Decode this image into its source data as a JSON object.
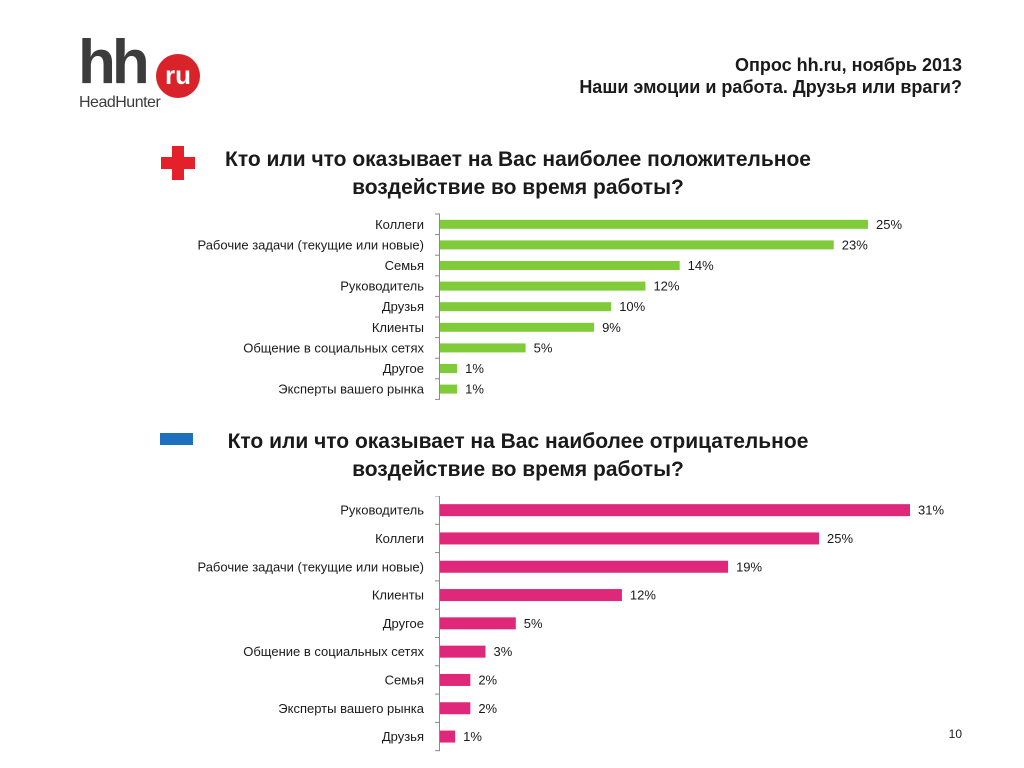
{
  "header": {
    "line1": "Опрос hh.ru, ноябрь 2013",
    "line2": "Наши эмоции и работа. Друзья или враги?"
  },
  "logo": {
    "main": "hh",
    "badge": "ru",
    "subtitle": "HeadHunter"
  },
  "colors": {
    "positive": "#7fcb3a",
    "negative": "#e0287a",
    "plus_icon": "#e4202a",
    "minus_icon": "#1f6fbf"
  },
  "questions": {
    "positive_title": "Кто или что оказывает на Вас наиболее положительное воздействие во время работы?",
    "negative_title": "Кто или что оказывает на Вас наиболее отрицательное воздействие во время работы?"
  },
  "chart_data": [
    {
      "type": "bar",
      "orientation": "horizontal",
      "title": "Кто или что оказывает на Вас наиболее положительное воздействие во время работы?",
      "categories": [
        "Коллеги",
        "Рабочие задачи (текущие или новые)",
        "Семья",
        "Руководитель",
        "Друзья",
        "Клиенты",
        "Общение в социальных сетях",
        "Другое",
        "Эксперты вашего рынка"
      ],
      "values": [
        25,
        23,
        14,
        12,
        10,
        9,
        5,
        1,
        1
      ],
      "value_suffix": "%",
      "color": "#7fcb3a",
      "xlim": [
        0,
        25
      ]
    },
    {
      "type": "bar",
      "orientation": "horizontal",
      "title": "Кто или что оказывает на Вас наиболее отрицательное воздействие во время работы?",
      "categories": [
        "Руководитель",
        "Коллеги",
        "Рабочие задачи (текущие или новые)",
        "Клиенты",
        "Другое",
        "Общение в социальных сетях",
        "Семья",
        "Эксперты вашего рынка",
        "Друзья"
      ],
      "values": [
        31,
        25,
        19,
        12,
        5,
        3,
        2,
        2,
        1
      ],
      "value_suffix": "%",
      "color": "#e0287a",
      "xlim": [
        0,
        31
      ]
    }
  ],
  "page_number": "10"
}
